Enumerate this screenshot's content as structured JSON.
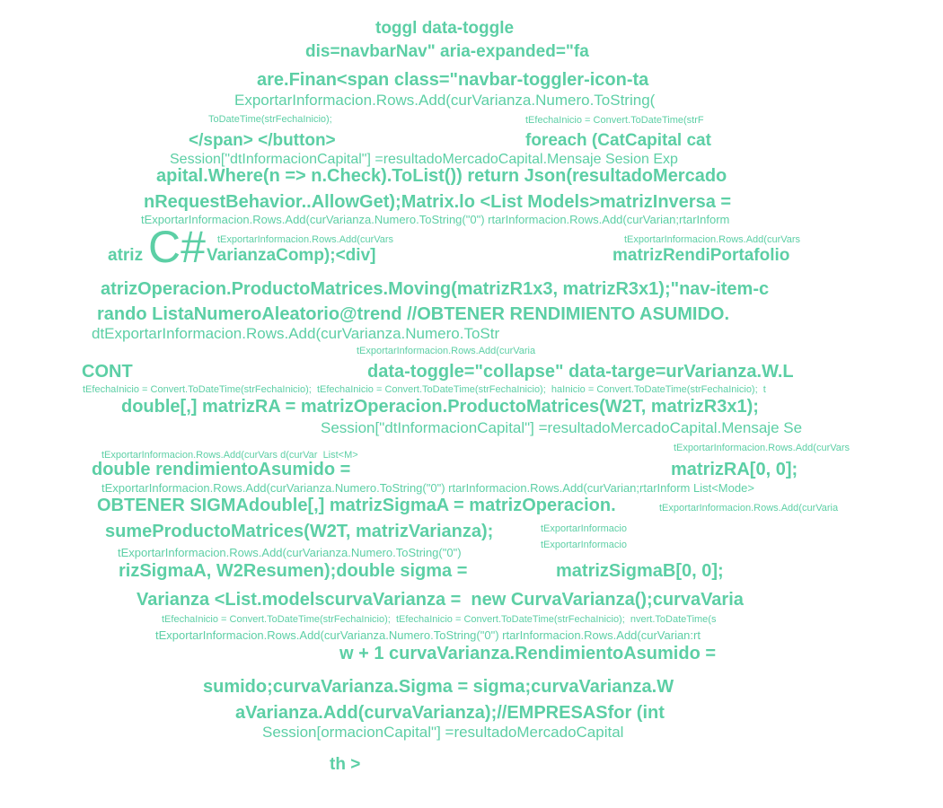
{
  "accent_color": "#5ccfa5",
  "lines": [
    "toggl data-toggle",
    "dis=navbarNav\" aria-expanded=\"fa",
    "are.Finan<span class=\"navbar-toggler-icon-ta",
    "ExportarInformacion.Rows.Add(curVarianza.Numero.ToString(",
    "ToDateTime(strFechaInicio);",
    "tEfechaInicio = Convert.ToDateTime(strF",
    "</span> </button>",
    "foreach (CatCapital cat",
    "Session[\"dtInformacionCapital\"] =resultadoMercadoCapital.Mensaje Sesion Exp",
    "apital.Where(n => n.Check).ToList()) return Json(resultadoMercado",
    "nRequestBehavior..AllowGet);Matrix.lo <List Models>matrizInversa =",
    "tExportarInformacion.Rows.Add(curVarianza.Numero.ToString(\"0\") rtarInformacion.Rows.Add(curVarian;rtarInform",
    "tExportarInformacion.Rows.Add(curVars",
    "tExportarInformacion.Rows.Add(curVars",
    "atriz",
    "C#",
    "VarianzaComp);<div]",
    "matrizRendiPortafolio",
    "atrizOperacion.ProductoMatrices.Moving(matrizR1x3, matrizR3x1);\"nav-item-c",
    "rando ListaNumeroAleatorio@trend //OBTENER RENDIMIENTO ASUMIDO.",
    "dtExportarInformacion.Rows.Add(curVarianza.Numero.ToStr",
    "tExportarInformacion.Rows.Add(curVaria",
    "CONT",
    "data-toggle=\"collapse\" data-targe=urVarianza.W.L",
    "tEfechaInicio = Convert.ToDateTime(strFechaInicio);  tEfechaInicio = Convert.ToDateTime(strFechaInicio);  haInicio = Convert.ToDateTime(strFechaInicio);  t",
    "double[,] matrizRA = matrizOperacion.ProductoMatrices(W2T, matrizR3x1);",
    "Session[\"dtInformacionCapital\"] =resultadoMercadoCapital.Mensaje Se",
    "tExportarInformacion.Rows.Add(curVars d(curVar  List<M>",
    "tExportarInformacion.Rows.Add(curVars",
    "double rendimientoAsumido =",
    "matrizRA[0, 0];",
    "tExportarInformacion.Rows.Add(curVarianza.Numero.ToString(\"0\") rtarInformacion.Rows.Add(curVarian;rtarInform List<Mode>",
    "OBTENER SIGMAdouble[,] matrizSigmaA = matrizOperacion.",
    "tExportarInformacion.Rows.Add(curVaria",
    "sumeProductoMatrices(W2T, matrizVarianza);",
    "tExportarInformacio",
    "tExportarInformacion.Rows.Add(curVarianza.Numero.ToString(\"0\")",
    "tExportarInformacio",
    "rizSigmaA, W2Resumen);double sigma =",
    "matrizSigmaB[0, 0];",
    "Varianza <List.modelscurvaVarianza =  new CurvaVarianza();curvaVaria",
    "tEfechaInicio = Convert.ToDateTime(strFechaInicio);  tEfechaInicio = Convert.ToDateTime(strFechaInicio);  nvert.ToDateTime(s",
    "tExportarInformacion.Rows.Add(curVarianza.Numero.ToString(\"0\") rtarInformacion.Rows.Add(curVarian:rt",
    "w + 1 curvaVarianza.RendimientoAsumido =",
    "sumido;curvaVarianza.Sigma = sigma;curvaVarianza.W",
    "aVarianza.Add(curvaVarianza);//EMPRESASfor (int",
    "Session[ormacionCapital\"] =resultadoMercadoCapital",
    "th >"
  ]
}
